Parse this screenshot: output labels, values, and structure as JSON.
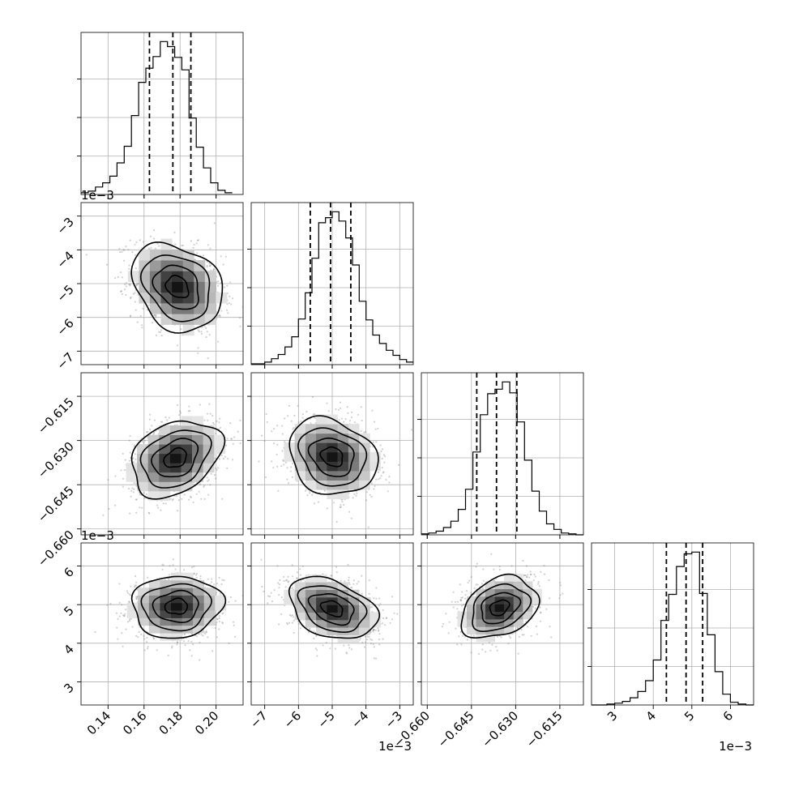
{
  "chart_data": {
    "type": "corner",
    "parameters": [
      {
        "name": "",
        "range": [
          0.125,
          0.215
        ],
        "ticks": [
          0.14,
          0.16,
          0.18,
          0.2
        ],
        "tick_labels": [
          "0.14",
          "0.16",
          "0.18",
          "0.20"
        ],
        "offset_label": ""
      },
      {
        "name": "",
        "range": [
          -7.4,
          -2.6
        ],
        "ticks": [
          -7,
          -6,
          -5,
          -4,
          -3
        ],
        "tick_labels": [
          "−7",
          "−6",
          "−5",
          "−4",
          "−3"
        ],
        "offset_label": "1e−3"
      },
      {
        "name": "",
        "range": [
          -0.662,
          -0.607
        ],
        "ticks": [
          -0.66,
          -0.645,
          -0.63,
          -0.615
        ],
        "tick_labels": [
          "−0.660",
          "−0.645",
          "−0.630",
          "−0.615"
        ],
        "offset_label": ""
      },
      {
        "name": "",
        "range": [
          2.4,
          6.6
        ],
        "ticks": [
          3,
          4,
          5,
          6
        ],
        "tick_labels": [
          "3",
          "4",
          "5",
          "6"
        ],
        "offset_label": "1e−3"
      }
    ],
    "marginals": [
      {
        "parameter": 0,
        "bins": [
          0.125,
          0.129,
          0.133,
          0.137,
          0.141,
          0.145,
          0.149,
          0.153,
          0.157,
          0.161,
          0.165,
          0.169,
          0.173,
          0.177,
          0.181,
          0.185,
          0.189,
          0.193,
          0.197,
          0.201,
          0.205,
          0.209
        ],
        "counts": [
          2,
          4,
          9,
          14,
          22,
          38,
          58,
          95,
          135,
          152,
          166,
          184,
          178,
          165,
          150,
          92,
          57,
          32,
          14,
          5,
          2
        ],
        "quantiles": [
          0.163,
          0.176,
          0.186
        ]
      },
      {
        "parameter": 1,
        "bins": [
          -7.4,
          -7.2,
          -7.0,
          -6.8,
          -6.6,
          -6.4,
          -6.2,
          -6.0,
          -5.8,
          -5.6,
          -5.4,
          -5.2,
          -5.0,
          -4.8,
          -4.6,
          -4.4,
          -4.2,
          -4.0,
          -3.8,
          -3.6,
          -3.4,
          -3.2,
          -3.0,
          -2.8,
          -2.6
        ],
        "counts": [
          1,
          1,
          3,
          7,
          12,
          21,
          33,
          54,
          85,
          126,
          168,
          174,
          181,
          170,
          150,
          118,
          75,
          53,
          35,
          25,
          17,
          11,
          6,
          3
        ],
        "quantiles": [
          -5.65,
          -5.05,
          -4.45
        ]
      },
      {
        "parameter": 2,
        "bins": [
          -0.662,
          -0.6595,
          -0.657,
          -0.6545,
          -0.652,
          -0.6495,
          -0.647,
          -0.6445,
          -0.642,
          -0.6395,
          -0.637,
          -0.6345,
          -0.632,
          -0.6295,
          -0.627,
          -0.6245,
          -0.622,
          -0.6195,
          -0.617,
          -0.6145,
          -0.612,
          -0.6095,
          -0.607
        ],
        "counts": [
          1,
          2,
          4,
          8,
          15,
          28,
          50,
          91,
          132,
          155,
          160,
          168,
          156,
          124,
          82,
          48,
          26,
          12,
          6,
          2,
          1,
          0
        ],
        "quantiles": [
          -0.6432,
          -0.6365,
          -0.6296
        ]
      },
      {
        "parameter": 3,
        "bins": [
          2.4,
          2.6,
          2.8,
          3.0,
          3.2,
          3.4,
          3.6,
          3.8,
          4.0,
          4.2,
          4.4,
          4.6,
          4.8,
          5.0,
          5.2,
          5.4,
          5.6,
          5.8,
          6.0,
          6.2,
          6.4,
          6.6
        ],
        "counts": [
          0,
          0,
          1,
          2,
          4,
          8,
          15,
          27,
          50,
          94,
          123,
          154,
          168,
          170,
          124,
          78,
          37,
          12,
          3,
          1,
          0
        ],
        "quantiles": [
          4.34,
          4.85,
          5.28
        ]
      }
    ],
    "pairs": [
      {
        "x_param": 0,
        "y_param": 1,
        "mean": [
          0.1785,
          -5.1
        ],
        "sd": [
          0.0125,
          0.65
        ],
        "rho": -0.25
      },
      {
        "x_param": 0,
        "y_param": 2,
        "mean": [
          0.1775,
          -0.636
        ],
        "sd": [
          0.0125,
          0.0065
        ],
        "rho": 0.3
      },
      {
        "x_param": 1,
        "y_param": 2,
        "mean": [
          -5.0,
          -0.6355
        ],
        "sd": [
          0.65,
          0.0065
        ],
        "rho": -0.2
      },
      {
        "x_param": 0,
        "y_param": 3,
        "mean": [
          0.178,
          4.95
        ],
        "sd": [
          0.0125,
          0.4
        ],
        "rho": 0.05
      },
      {
        "x_param": 1,
        "y_param": 3,
        "mean": [
          -5.0,
          4.9
        ],
        "sd": [
          0.65,
          0.4
        ],
        "rho": -0.35
      },
      {
        "x_param": 2,
        "y_param": 3,
        "mean": [
          -0.6355,
          4.92
        ],
        "sd": [
          0.0065,
          0.4
        ],
        "rho": 0.3
      }
    ],
    "contour_levels_sigma": [
      0.5,
      1.0,
      1.5,
      2.0
    ],
    "grid": true
  }
}
